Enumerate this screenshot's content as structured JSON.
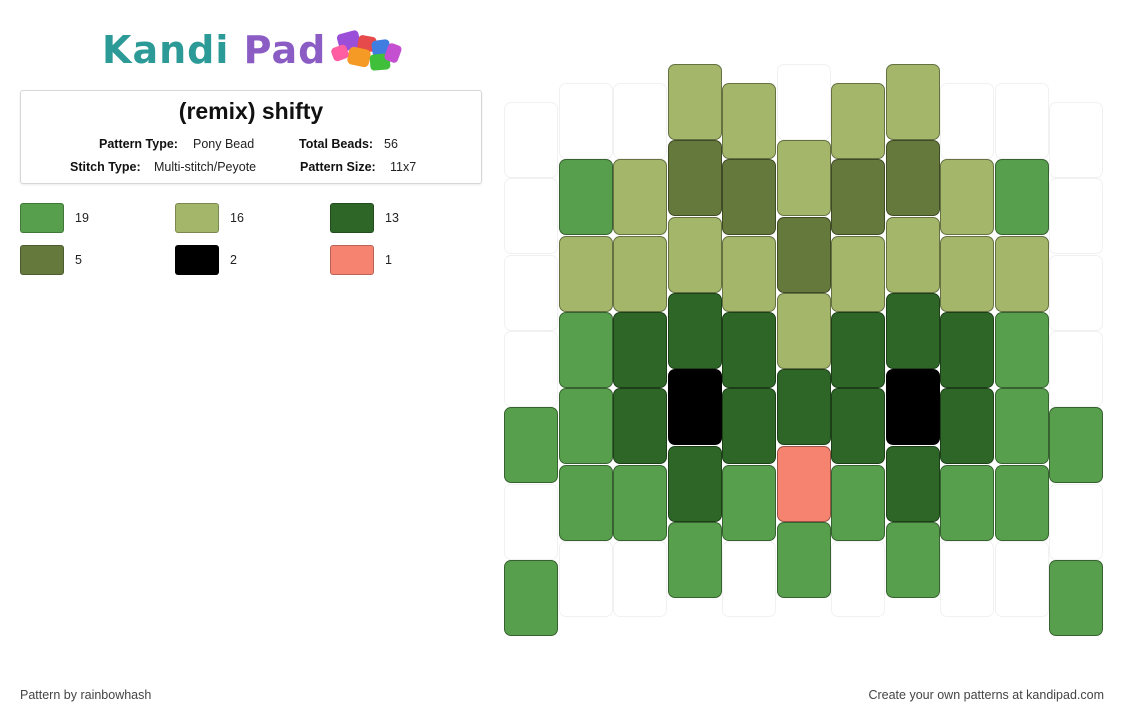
{
  "logo": {
    "part1": "Kandi",
    "part2": "Pad"
  },
  "pattern": {
    "title": "(remix) shifty",
    "type_label": "Pattern Type:",
    "type_value": "Pony Bead",
    "total_label": "Total Beads:",
    "total_value": "56",
    "stitch_label": "Stitch Type:",
    "stitch_value": "Multi-stitch/Peyote",
    "size_label": "Pattern Size:",
    "size_value": "11x7"
  },
  "legend": [
    {
      "color": "#579f4c",
      "count": "19"
    },
    {
      "color": "#a3b66a",
      "count": "16"
    },
    {
      "color": "#2e6628",
      "count": "13"
    },
    {
      "color": "#66793c",
      "count": "5"
    },
    {
      "color": "#000000",
      "count": "2"
    },
    {
      "color": "#f6836f",
      "count": "1"
    }
  ],
  "bead_grid": {
    "columns": 11,
    "rows": 7,
    "palette": {
      "0": "#ffffff",
      "1": "#579f4c",
      "2": "#a3b66a",
      "3": "#2e6628",
      "4": "#66793c",
      "5": "#000000",
      "6": "#f6836f"
    },
    "column_offsets": [
      0.5,
      0.25,
      0.25,
      0.0,
      0.25,
      0.0,
      0.25,
      0.0,
      0.25,
      0.25,
      0.5
    ],
    "cells": [
      [
        0,
        0,
        0,
        0,
        1,
        0,
        1
      ],
      [
        0,
        1,
        2,
        1,
        1,
        1,
        0
      ],
      [
        0,
        2,
        2,
        3,
        3,
        1,
        0
      ],
      [
        2,
        4,
        2,
        3,
        5,
        3,
        1
      ],
      [
        2,
        4,
        2,
        3,
        3,
        1,
        0
      ],
      [
        0,
        2,
        4,
        2,
        3,
        6,
        1
      ],
      [
        2,
        4,
        2,
        3,
        3,
        1,
        0
      ],
      [
        2,
        4,
        2,
        3,
        5,
        3,
        1
      ],
      [
        0,
        2,
        2,
        3,
        3,
        1,
        0
      ],
      [
        0,
        1,
        2,
        1,
        1,
        1,
        0
      ],
      [
        0,
        0,
        0,
        0,
        1,
        0,
        1
      ]
    ]
  },
  "footer": {
    "author": "Pattern by rainbowhash",
    "promo": "Create your own patterns at kandipad.com"
  }
}
